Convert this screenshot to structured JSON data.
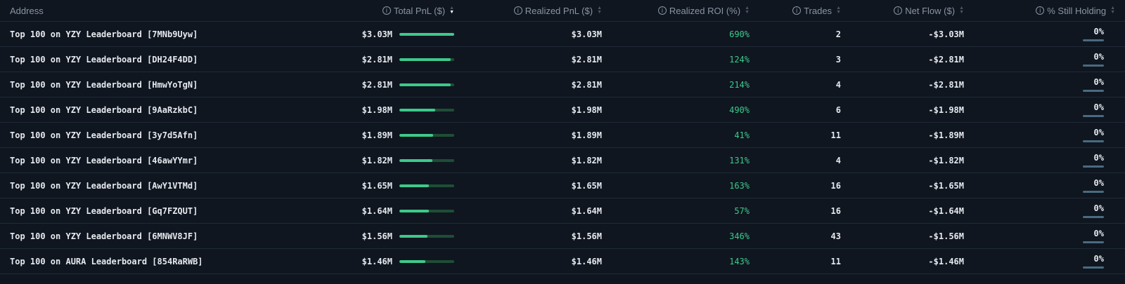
{
  "header": {
    "address": "Address",
    "total_pnl": "Total PnL ($)",
    "realized_pnl": "Realized PnL ($)",
    "realized_roi": "Realized ROI (%)",
    "trades": "Trades",
    "net_flow": "Net Flow ($)",
    "still_holding": "% Still Holding"
  },
  "rows": [
    {
      "address": "Top 100 on YZY Leaderboard [7MNb9Uyw]",
      "total_pnl": "$3.03M",
      "pnl_fraction": 1.0,
      "realized_pnl": "$3.03M",
      "roi": "690%",
      "trades": "2",
      "net_flow": "-$3.03M",
      "holding": "0%"
    },
    {
      "address": "Top 100 on YZY Leaderboard [DH24F4DD]",
      "total_pnl": "$2.81M",
      "pnl_fraction": 0.93,
      "realized_pnl": "$2.81M",
      "roi": "124%",
      "trades": "3",
      "net_flow": "-$2.81M",
      "holding": "0%"
    },
    {
      "address": "Top 100 on YZY Leaderboard [HmwYoTgN]",
      "total_pnl": "$2.81M",
      "pnl_fraction": 0.93,
      "realized_pnl": "$2.81M",
      "roi": "214%",
      "trades": "4",
      "net_flow": "-$2.81M",
      "holding": "0%"
    },
    {
      "address": "Top 100 on YZY Leaderboard [9AaRzkbC]",
      "total_pnl": "$1.98M",
      "pnl_fraction": 0.65,
      "realized_pnl": "$1.98M",
      "roi": "490%",
      "trades": "6",
      "net_flow": "-$1.98M",
      "holding": "0%"
    },
    {
      "address": "Top 100 on YZY Leaderboard [3y7d5Afn]",
      "total_pnl": "$1.89M",
      "pnl_fraction": 0.62,
      "realized_pnl": "$1.89M",
      "roi": "41%",
      "trades": "11",
      "net_flow": "-$1.89M",
      "holding": "0%"
    },
    {
      "address": "Top 100 on YZY Leaderboard [46awYYmr]",
      "total_pnl": "$1.82M",
      "pnl_fraction": 0.6,
      "realized_pnl": "$1.82M",
      "roi": "131%",
      "trades": "4",
      "net_flow": "-$1.82M",
      "holding": "0%"
    },
    {
      "address": "Top 100 on YZY Leaderboard [AwY1VTMd]",
      "total_pnl": "$1.65M",
      "pnl_fraction": 0.54,
      "realized_pnl": "$1.65M",
      "roi": "163%",
      "trades": "16",
      "net_flow": "-$1.65M",
      "holding": "0%"
    },
    {
      "address": "Top 100 on YZY Leaderboard [Gq7FZQUT]",
      "total_pnl": "$1.64M",
      "pnl_fraction": 0.54,
      "realized_pnl": "$1.64M",
      "roi": "57%",
      "trades": "16",
      "net_flow": "-$1.64M",
      "holding": "0%"
    },
    {
      "address": "Top 100 on YZY Leaderboard [6MNWV8JF]",
      "total_pnl": "$1.56M",
      "pnl_fraction": 0.51,
      "realized_pnl": "$1.56M",
      "roi": "346%",
      "trades": "43",
      "net_flow": "-$1.56M",
      "holding": "0%"
    },
    {
      "address": "Top 100 on AURA Leaderboard [854RaRWB]",
      "total_pnl": "$1.46M",
      "pnl_fraction": 0.48,
      "realized_pnl": "$1.46M",
      "roi": "143%",
      "trades": "11",
      "net_flow": "-$1.46M",
      "holding": "0%"
    }
  ],
  "icons": {
    "info": "info-icon",
    "sort": "sort-icon"
  },
  "colors": {
    "background": "#0f1620",
    "accent": "#3ec98a",
    "bar_track": "#1f4d36",
    "holding_bar": "#4a6a80"
  }
}
